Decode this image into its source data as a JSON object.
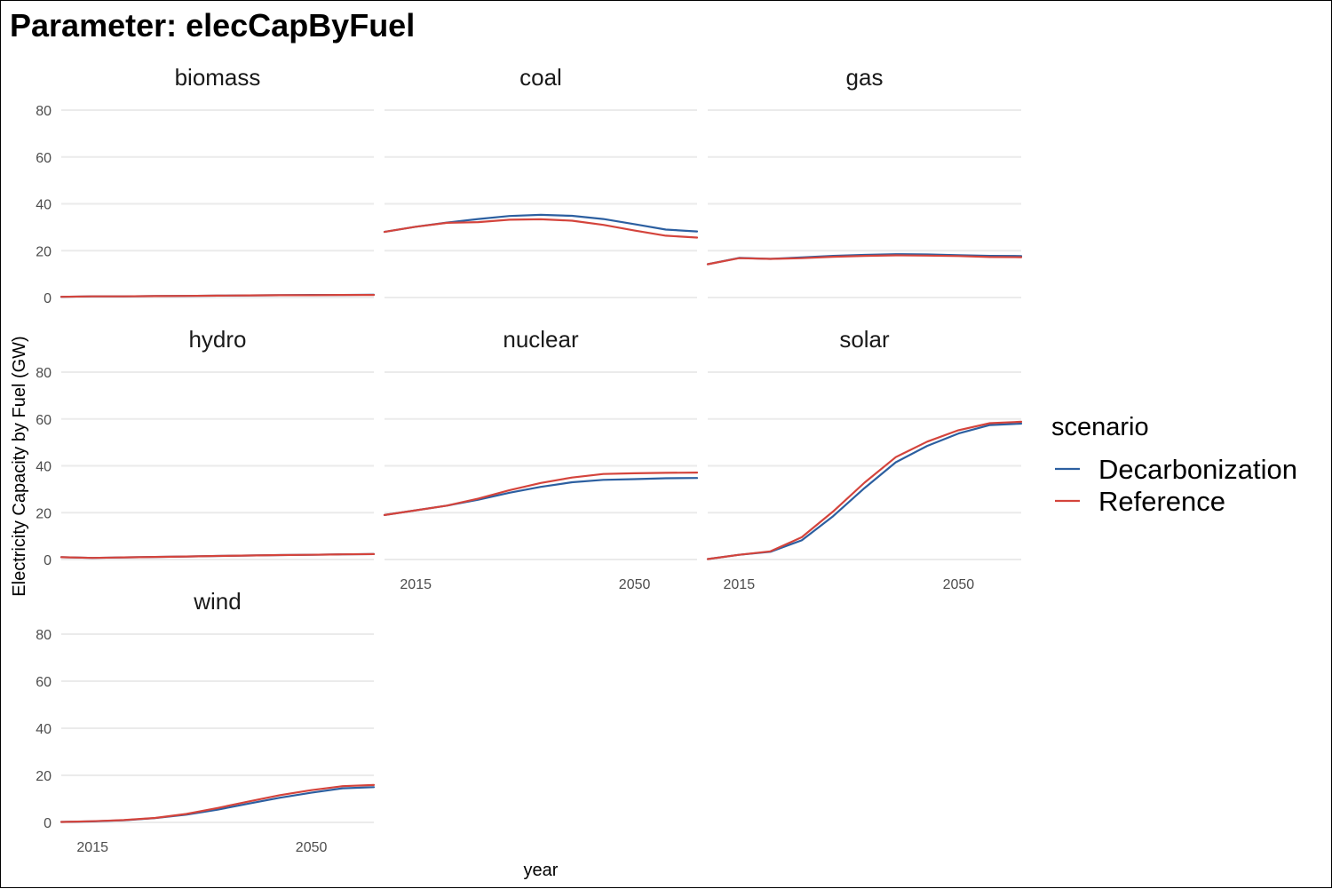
{
  "title": "Parameter: elecCapByFuel",
  "chart_data": {
    "type": "line",
    "layout": "faceted",
    "xlabel": "year",
    "ylabel": "Electricity Capacity by Fuel (GW)",
    "xlim": [
      2010,
      2060
    ],
    "ylim": [
      0,
      80
    ],
    "x_ticks": [
      2015,
      2050
    ],
    "y_ticks": [
      0,
      20,
      40,
      60,
      80
    ],
    "grid": true,
    "legend": {
      "title": "scenario",
      "placement": "right",
      "entries": [
        {
          "name": "Decarbonization",
          "color": "#2c5fa0"
        },
        {
          "name": "Reference",
          "color": "#d4443c"
        }
      ]
    },
    "x": [
      2010,
      2015,
      2020,
      2025,
      2030,
      2035,
      2040,
      2045,
      2050,
      2055,
      2060
    ],
    "facets": [
      {
        "name": "biomass",
        "series": [
          {
            "name": "Decarbonization",
            "values": [
              0.3,
              0.5,
              0.5,
              0.6,
              0.7,
              0.8,
              0.9,
              1.0,
              1.1,
              1.1,
              1.2
            ]
          },
          {
            "name": "Reference",
            "values": [
              0.3,
              0.5,
              0.5,
              0.6,
              0.7,
              0.8,
              0.9,
              1.0,
              1.0,
              1.1,
              1.1
            ]
          }
        ]
      },
      {
        "name": "coal",
        "series": [
          {
            "name": "Decarbonization",
            "values": [
              28,
              30.2,
              32,
              33.5,
              34.8,
              35.3,
              34.9,
              33.5,
              31.3,
              29.0,
              28.2
            ]
          },
          {
            "name": "Reference",
            "values": [
              28,
              30.2,
              31.9,
              32.2,
              33.2,
              33.4,
              32.8,
              31.0,
              28.6,
              26.4,
              25.6
            ]
          }
        ]
      },
      {
        "name": "gas",
        "series": [
          {
            "name": "Decarbonization",
            "values": [
              14.2,
              16.9,
              16.5,
              17.1,
              17.8,
              18.2,
              18.5,
              18.4,
              18.1,
              17.8,
              17.7
            ]
          },
          {
            "name": "Reference",
            "values": [
              14.2,
              16.8,
              16.5,
              16.8,
              17.4,
              17.8,
              18.0,
              17.9,
              17.7,
              17.3,
              17.2
            ]
          }
        ]
      },
      {
        "name": "hydro",
        "series": [
          {
            "name": "Decarbonization",
            "values": [
              1.0,
              0.7,
              0.9,
              1.1,
              1.3,
              1.5,
              1.7,
              1.9,
              2.0,
              2.2,
              2.3
            ]
          },
          {
            "name": "Reference",
            "values": [
              1.0,
              0.7,
              0.9,
              1.1,
              1.3,
              1.5,
              1.7,
              1.9,
              2.0,
              2.2,
              2.3
            ]
          }
        ]
      },
      {
        "name": "nuclear",
        "series": [
          {
            "name": "Decarbonization",
            "values": [
              19,
              21,
              23,
              25.5,
              28.5,
              31,
              33,
              34,
              34.3,
              34.7,
              34.8
            ]
          },
          {
            "name": "Reference",
            "values": [
              19,
              21,
              23,
              26,
              29.6,
              32.7,
              35,
              36.5,
              36.8,
              37,
              37.1
            ]
          }
        ]
      },
      {
        "name": "solar",
        "series": [
          {
            "name": "Decarbonization",
            "values": [
              0.2,
              2.0,
              3.3,
              8.2,
              18.5,
              30.5,
              41.5,
              48.5,
              53.8,
              57.4,
              58.0
            ]
          },
          {
            "name": "Reference",
            "values": [
              0.2,
              2.0,
              3.5,
              9.5,
              20.5,
              32.8,
              43.7,
              50.3,
              55.2,
              58.2,
              58.8
            ]
          }
        ]
      },
      {
        "name": "wind",
        "series": [
          {
            "name": "Decarbonization",
            "values": [
              0.2,
              0.4,
              0.9,
              1.8,
              3.3,
              5.4,
              8.0,
              10.5,
              12.6,
              14.5,
              15.0
            ]
          },
          {
            "name": "Reference",
            "values": [
              0.2,
              0.5,
              1.0,
              1.9,
              3.6,
              6.1,
              8.9,
              11.6,
              13.7,
              15.4,
              15.9
            ]
          }
        ]
      }
    ]
  }
}
